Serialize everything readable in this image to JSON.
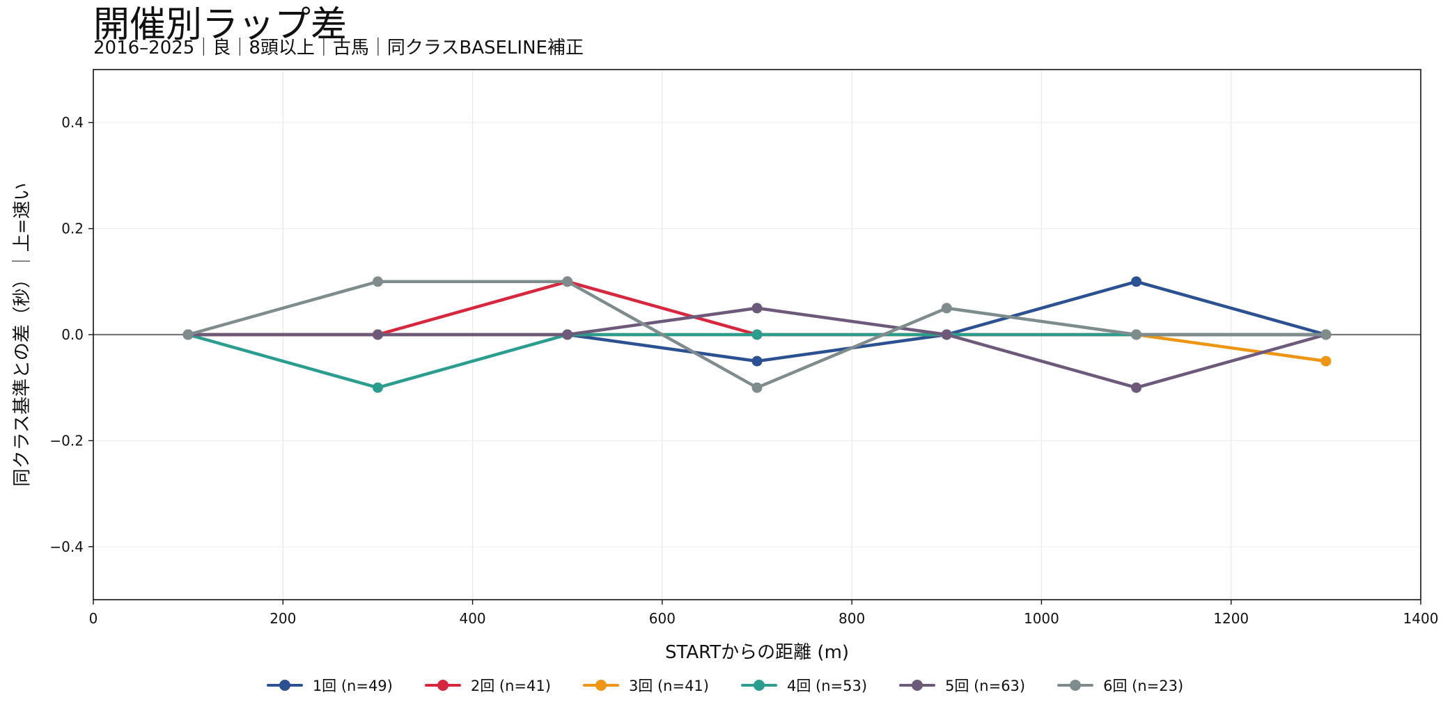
{
  "chart_data": {
    "type": "line",
    "title": "開催別ラップ差",
    "subtitle": "2016–2025｜良｜8頭以上｜古馬｜同クラスBASELINE補正",
    "xlabel": "STARTからの距離 (m)",
    "ylabel": "同クラス基準との差（秒）｜上=速い",
    "xlim": [
      0,
      1400
    ],
    "ylim": [
      -0.5,
      0.5
    ],
    "x_ticks": [
      0,
      200,
      400,
      600,
      800,
      1000,
      1200,
      1400
    ],
    "y_ticks": [
      0.4,
      0.2,
      0.0,
      -0.2,
      -0.4
    ],
    "x_tick_labels": [
      "0",
      "200",
      "400",
      "600",
      "800",
      "1000",
      "1200",
      "1400"
    ],
    "y_tick_labels": [
      "0.4",
      "0.2",
      "0.0",
      "−0.2",
      "−0.4"
    ],
    "grid": true,
    "zero_line": true,
    "legend_position": "bottom-center",
    "x": [
      100,
      300,
      500,
      700,
      900,
      1100,
      1300
    ],
    "series": [
      {
        "name": "1回 (n=49)",
        "color": "#2c5192",
        "values": [
          0.0,
          0.0,
          0.0,
          -0.05,
          0.0,
          0.1,
          0.0
        ]
      },
      {
        "name": "2回 (n=41)",
        "color": "#d7263d",
        "values": [
          0.0,
          0.0,
          0.1,
          0.0,
          0.0,
          0.0,
          0.0
        ]
      },
      {
        "name": "3回 (n=41)",
        "color": "#ee9513",
        "values": [
          0.0,
          0.0,
          0.0,
          0.0,
          0.0,
          0.0,
          -0.05
        ]
      },
      {
        "name": "4回 (n=53)",
        "color": "#2a9d8f",
        "values": [
          0.0,
          -0.1,
          0.0,
          0.0,
          0.0,
          0.0,
          0.0
        ]
      },
      {
        "name": "5回 (n=63)",
        "color": "#6d597a",
        "values": [
          0.0,
          0.0,
          0.0,
          0.05,
          0.0,
          -0.1,
          0.0
        ]
      },
      {
        "name": "6回 (n=23)",
        "color": "#7f8c8d",
        "values": [
          0.0,
          0.1,
          0.1,
          -0.1,
          0.05,
          0.0,
          0.0
        ]
      }
    ]
  }
}
